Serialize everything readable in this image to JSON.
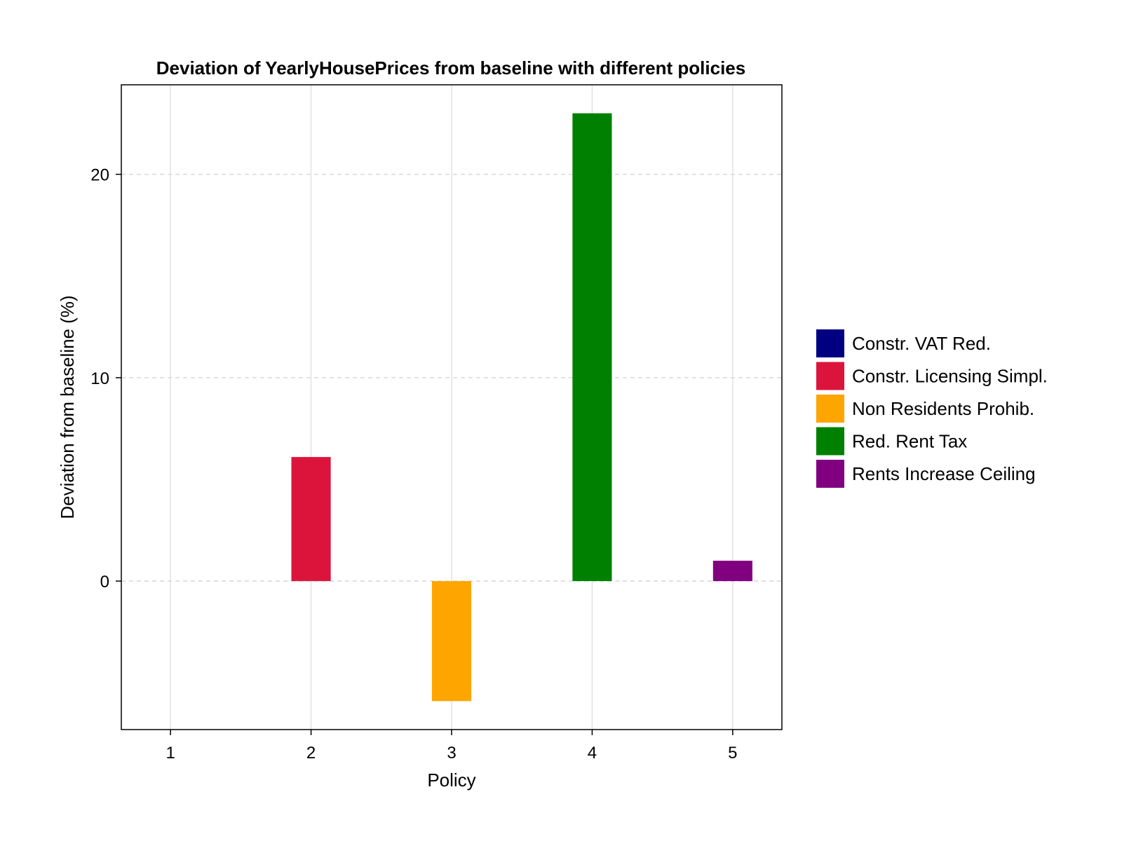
{
  "chart_data": {
    "type": "bar",
    "title": "Deviation of YearlyHousePrices from baseline with different policies",
    "xlabel": "Policy",
    "ylabel": "Deviation from baseline (%)",
    "categories": [
      "1",
      "2",
      "3",
      "4",
      "5"
    ],
    "x": [
      1,
      2,
      3,
      4,
      5
    ],
    "values": [
      0,
      6.1,
      -5.9,
      23.0,
      1.0
    ],
    "yticks": [
      0,
      10,
      20
    ],
    "ylim": [
      -7.3,
      24.4
    ],
    "xlim": [
      0.65,
      5.35
    ],
    "grid": true,
    "legend_position": "right",
    "series": [
      {
        "name": "Constr. VAT Red.",
        "color": "#000080"
      },
      {
        "name": "Constr. Licensing Simpl.",
        "color": "#dc143c"
      },
      {
        "name": "Non Residents Prohib.",
        "color": "#ffa500"
      },
      {
        "name": "Red. Rent Tax",
        "color": "#008000"
      },
      {
        "name": "Rents Increase Ceiling",
        "color": "#800080"
      }
    ]
  }
}
